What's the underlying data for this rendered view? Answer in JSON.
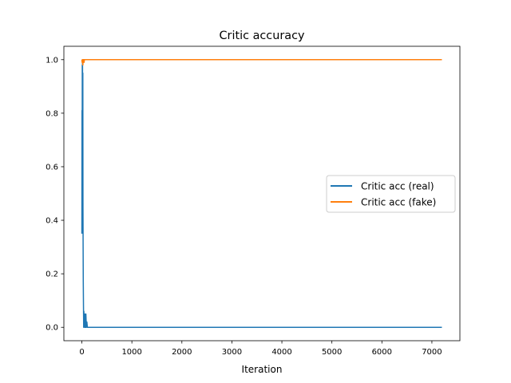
{
  "chart_data": {
    "type": "line",
    "title": "Critic accuracy",
    "xlabel": "Iteration",
    "ylabel": "",
    "xlim": [
      -360,
      7560
    ],
    "ylim": [
      -0.05,
      1.05
    ],
    "xticks": [
      0,
      1000,
      2000,
      3000,
      4000,
      5000,
      6000,
      7000
    ],
    "yticks": [
      0.0,
      0.2,
      0.4,
      0.6,
      0.8,
      1.0
    ],
    "xtick_labels": [
      "0",
      "1000",
      "2000",
      "3000",
      "4000",
      "5000",
      "6000",
      "7000"
    ],
    "ytick_labels": [
      "0.0",
      "0.2",
      "0.4",
      "0.6",
      "0.8",
      "1.0"
    ],
    "grid": false,
    "legend_position": "center-right",
    "series": [
      {
        "name": "Critic acc (real)",
        "color": "#1f77b4",
        "x": [
          0,
          3,
          6,
          8,
          10,
          13,
          16,
          19,
          22,
          25,
          28,
          32,
          36,
          40,
          45,
          50,
          55,
          60,
          65,
          70,
          75,
          80,
          90,
          100,
          110,
          120,
          150,
          200,
          500,
          1000,
          2000,
          3000,
          4000,
          5000,
          6000,
          7000,
          7200
        ],
        "y": [
          0.35,
          0.81,
          0.4,
          0.98,
          0.5,
          1.0,
          0.36,
          0.95,
          0.45,
          0.3,
          0.17,
          0.08,
          0.0,
          0.06,
          0.01,
          0.04,
          0.0,
          0.05,
          0.0,
          0.03,
          0.0,
          0.05,
          0.0,
          0.02,
          0.0,
          0.0,
          0.0,
          0.0,
          0.0,
          0.0,
          0.0,
          0.0,
          0.0,
          0.0,
          0.0,
          0.0,
          0.0
        ]
      },
      {
        "name": "Critic acc (fake)",
        "color": "#ff7f0e",
        "x": [
          0,
          5,
          10,
          15,
          20,
          25,
          30,
          35,
          40,
          45,
          50,
          60,
          80,
          100,
          500,
          1000,
          2000,
          3000,
          4000,
          5000,
          6000,
          7000,
          7200
        ],
        "y": [
          1.0,
          0.99,
          1.0,
          1.0,
          0.98,
          1.0,
          0.99,
          1.0,
          1.0,
          0.99,
          1.0,
          1.0,
          1.0,
          1.0,
          1.0,
          1.0,
          1.0,
          1.0,
          1.0,
          1.0,
          1.0,
          1.0,
          1.0
        ]
      }
    ]
  }
}
